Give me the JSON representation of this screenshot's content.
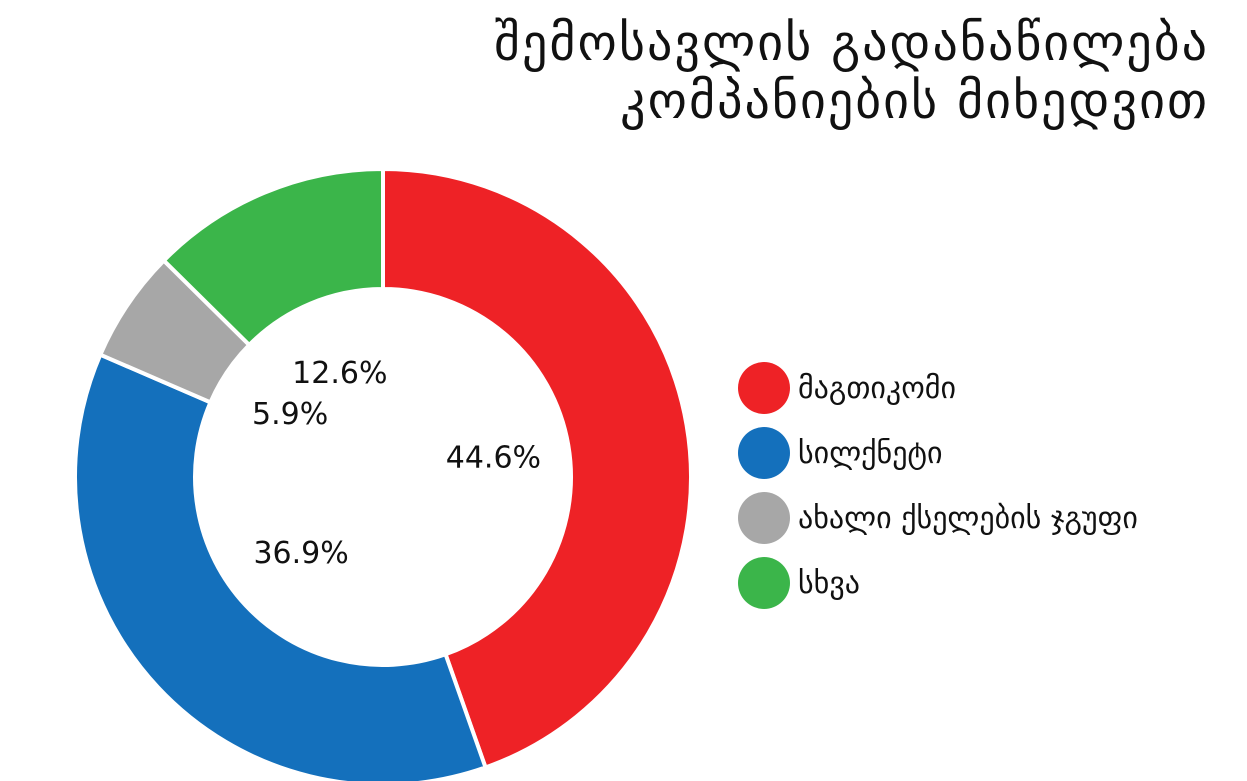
{
  "chart_data": {
    "type": "pie",
    "title": [
      "შემოსავლის გადანაწილება",
      "კომპანიების მიხედვით"
    ],
    "categories": [
      "მაგთიკომი",
      "სილქნეტი",
      "ახალი ქსელების ჯგუფი",
      "სხვა"
    ],
    "values": [
      44.6,
      36.9,
      5.9,
      12.6
    ],
    "labels": [
      "44.6%",
      "36.9%",
      "5.9%",
      "12.6%"
    ],
    "colors": [
      "#ee2226",
      "#1470bc",
      "#a7a7a7",
      "#3bb54a"
    ],
    "donut": true,
    "start_angle_deg": 0,
    "direction": "clockwise",
    "legend_position": "right"
  }
}
